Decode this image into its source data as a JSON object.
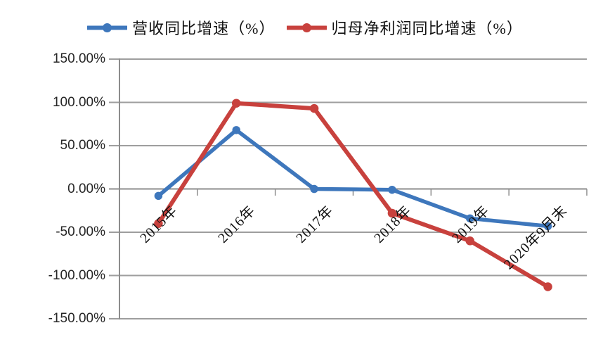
{
  "legend": {
    "items": [
      {
        "label": "营收同比增速（%）",
        "color": "#3E77BC"
      },
      {
        "label": "归母净利润同比增速（%）",
        "color": "#C8413D"
      }
    ]
  },
  "chart_data": {
    "type": "line",
    "categories": [
      "2015年",
      "2016年",
      "2017年",
      "2018年",
      "2019年",
      "2020年9月末"
    ],
    "series": [
      {
        "name": "营收同比增速（%）",
        "color": "#3E77BC",
        "values": [
          -8,
          68,
          0,
          -1,
          -34,
          -43
        ]
      },
      {
        "name": "归母净利润同比增速（%）",
        "color": "#C8413D",
        "values": [
          -40,
          99,
          93,
          -28,
          -60,
          -113
        ]
      }
    ],
    "title": "",
    "xlabel": "",
    "ylabel": "",
    "ylim": [
      -150,
      150
    ],
    "ytick_step": 50,
    "ytick_labels": [
      "150.00%",
      "100.00%",
      "50.00%",
      "0.00%",
      "-50.00%",
      "-100.00%",
      "-150.00%"
    ],
    "grid": true,
    "legend_position": "top",
    "marker": "circle"
  },
  "colors": {
    "gridline": "#9e9e9e",
    "axis": "#8c8c8c",
    "y_label_text": "#262626",
    "x_label_text": "#111111"
  }
}
